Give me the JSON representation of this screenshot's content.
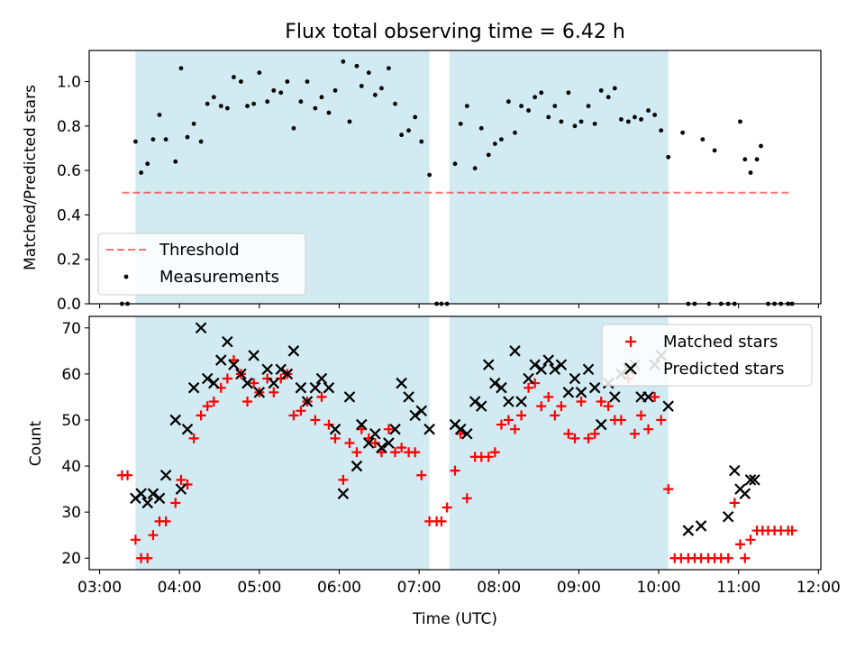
{
  "figure": {
    "title": "Flux total observing time = 6.42 h",
    "xlabel": "Time (UTC)"
  },
  "colors": {
    "band": "#add8e6",
    "threshold": "#ff0000",
    "measurements": "#000000",
    "matched": "#ff0000",
    "predicted": "#000000"
  },
  "chart_data": [
    {
      "type": "scatter",
      "ylabel": "Matched/Predicted stars",
      "ylim": [
        0,
        1.14
      ],
      "yticks": [
        "0.0",
        "0.2",
        "0.4",
        "0.6",
        "0.8",
        "1.0"
      ],
      "grid": false,
      "legend_position": "lower-left",
      "legend": [
        "Threshold",
        "Measurements"
      ],
      "threshold": {
        "name": "Threshold",
        "value": 0.5,
        "x_range": [
          3.28,
          11.67
        ]
      },
      "shaded_intervals": [
        [
          3.45,
          7.13
        ],
        [
          7.38,
          10.12
        ]
      ],
      "series": [
        {
          "name": "Measurements",
          "x": [
            3.28,
            3.35,
            3.45,
            3.52,
            3.6,
            3.67,
            3.75,
            3.83,
            3.95,
            4.02,
            4.1,
            4.18,
            4.27,
            4.35,
            4.43,
            4.52,
            4.6,
            4.68,
            4.77,
            4.85,
            4.93,
            5.0,
            5.1,
            5.18,
            5.27,
            5.35,
            5.43,
            5.52,
            5.6,
            5.7,
            5.78,
            5.87,
            5.95,
            6.05,
            6.13,
            6.22,
            6.28,
            6.37,
            6.45,
            6.53,
            6.62,
            6.7,
            6.78,
            6.87,
            6.95,
            7.03,
            7.13,
            7.22,
            7.28,
            7.35,
            7.45,
            7.52,
            7.6,
            7.7,
            7.78,
            7.87,
            7.95,
            8.03,
            8.12,
            8.2,
            8.28,
            8.37,
            8.45,
            8.53,
            8.62,
            8.7,
            8.78,
            8.87,
            8.95,
            9.03,
            9.12,
            9.2,
            9.28,
            9.37,
            9.45,
            9.53,
            9.62,
            9.7,
            9.78,
            9.87,
            9.95,
            10.03,
            10.12,
            10.3,
            10.37,
            10.45,
            10.55,
            10.63,
            10.7,
            10.78,
            10.87,
            10.95,
            11.02,
            11.08,
            11.15,
            11.23,
            11.28,
            11.37,
            11.45,
            11.53,
            11.62,
            11.67
          ],
          "y": [
            0.0,
            0.0,
            0.73,
            0.59,
            0.63,
            0.74,
            0.85,
            0.74,
            0.64,
            1.06,
            0.75,
            0.81,
            0.73,
            0.9,
            0.93,
            0.89,
            0.88,
            1.02,
            1.0,
            0.89,
            0.9,
            1.04,
            0.91,
            0.96,
            0.95,
            1.0,
            0.79,
            0.91,
            1.0,
            0.88,
            0.93,
            0.86,
            0.96,
            1.09,
            0.82,
            1.07,
            0.98,
            1.04,
            0.94,
            0.97,
            1.06,
            0.9,
            0.76,
            0.78,
            0.84,
            0.73,
            0.58,
            0.0,
            0.0,
            0.0,
            0.63,
            0.81,
            0.89,
            0.61,
            0.79,
            0.67,
            0.72,
            0.74,
            0.91,
            0.77,
            0.89,
            0.87,
            0.93,
            0.95,
            0.84,
            0.89,
            0.82,
            0.95,
            0.8,
            0.82,
            0.89,
            0.81,
            0.96,
            0.93,
            0.97,
            0.83,
            0.82,
            0.84,
            0.83,
            0.87,
            0.85,
            0.78,
            0.66,
            0.77,
            0.0,
            0.0,
            0.74,
            0.0,
            0.69,
            0.0,
            0.0,
            0.0,
            0.82,
            0.65,
            0.59,
            0.65,
            0.71,
            0.0,
            0.0,
            0.0,
            0.0,
            0.0
          ]
        }
      ]
    },
    {
      "type": "scatter",
      "ylabel": "Count",
      "ylim": [
        17.5,
        72.5
      ],
      "yticks": [
        "20",
        "30",
        "40",
        "50",
        "60",
        "70"
      ],
      "xlim": [
        2.87,
        12.03
      ],
      "xticks": [
        "03:00",
        "04:00",
        "05:00",
        "06:00",
        "07:00",
        "08:00",
        "09:00",
        "10:00",
        "11:00",
        "12:00"
      ],
      "grid": false,
      "legend_position": "upper-right",
      "legend": [
        "Matched stars",
        "Predicted stars"
      ],
      "shaded_intervals": [
        [
          3.45,
          7.13
        ],
        [
          7.38,
          10.12
        ]
      ],
      "series": [
        {
          "name": "Matched stars",
          "x": [
            3.28,
            3.35,
            3.45,
            3.52,
            3.6,
            3.67,
            3.75,
            3.83,
            3.95,
            4.02,
            4.1,
            4.18,
            4.27,
            4.35,
            4.43,
            4.52,
            4.6,
            4.68,
            4.77,
            4.85,
            4.93,
            5.0,
            5.1,
            5.18,
            5.27,
            5.35,
            5.43,
            5.52,
            5.6,
            5.7,
            5.78,
            5.87,
            5.95,
            6.05,
            6.13,
            6.22,
            6.28,
            6.37,
            6.45,
            6.53,
            6.62,
            6.7,
            6.78,
            6.87,
            6.95,
            7.03,
            7.13,
            7.22,
            7.28,
            7.35,
            7.45,
            7.52,
            7.6,
            7.7,
            7.78,
            7.87,
            7.95,
            8.03,
            8.12,
            8.2,
            8.28,
            8.37,
            8.45,
            8.53,
            8.62,
            8.7,
            8.78,
            8.87,
            8.95,
            9.03,
            9.12,
            9.2,
            9.28,
            9.37,
            9.45,
            9.53,
            9.62,
            9.7,
            9.78,
            9.87,
            9.95,
            10.03,
            10.12,
            10.2,
            10.28,
            10.37,
            10.45,
            10.53,
            10.62,
            10.7,
            10.78,
            10.87,
            10.95,
            11.02,
            11.08,
            11.15,
            11.23,
            11.3,
            11.37,
            11.45,
            11.53,
            11.62,
            11.67
          ],
          "y": [
            38,
            38,
            24,
            20,
            20,
            25,
            28,
            28,
            32,
            37,
            36,
            46,
            51,
            53,
            54,
            57,
            59,
            63,
            60,
            54,
            58,
            56,
            59,
            56,
            59,
            60,
            51,
            52,
            54,
            50,
            55,
            49,
            46,
            37,
            45,
            43,
            48,
            46,
            45,
            43,
            48,
            43,
            44,
            43,
            43,
            38,
            28,
            28,
            28,
            31,
            39,
            47,
            33,
            42,
            42,
            42,
            43,
            49,
            50,
            48,
            51,
            57,
            58,
            53,
            55,
            51,
            53,
            47,
            46,
            54,
            46,
            47,
            54,
            53,
            50,
            50,
            59,
            47,
            51,
            48,
            55,
            50,
            35,
            20,
            20,
            20,
            20,
            20,
            20,
            20,
            20,
            20,
            32,
            23,
            20,
            24,
            26,
            26,
            26,
            26,
            26,
            26,
            26
          ]
        },
        {
          "name": "Predicted stars",
          "x": [
            3.45,
            3.52,
            3.6,
            3.67,
            3.75,
            3.83,
            3.95,
            4.02,
            4.1,
            4.18,
            4.27,
            4.35,
            4.43,
            4.52,
            4.6,
            4.68,
            4.77,
            4.85,
            4.93,
            5.0,
            5.1,
            5.18,
            5.27,
            5.35,
            5.43,
            5.52,
            5.6,
            5.7,
            5.78,
            5.87,
            5.95,
            6.05,
            6.13,
            6.22,
            6.28,
            6.37,
            6.45,
            6.53,
            6.62,
            6.7,
            6.78,
            6.87,
            6.95,
            7.03,
            7.13,
            7.45,
            7.52,
            7.6,
            7.7,
            7.78,
            7.87,
            7.95,
            8.03,
            8.12,
            8.2,
            8.28,
            8.37,
            8.45,
            8.53,
            8.62,
            8.7,
            8.78,
            8.87,
            8.95,
            9.03,
            9.12,
            9.2,
            9.28,
            9.37,
            9.45,
            9.53,
            9.62,
            9.7,
            9.78,
            9.87,
            9.95,
            10.03,
            10.12,
            10.37,
            10.53,
            10.87,
            10.95,
            11.02,
            11.08,
            11.15,
            11.2
          ],
          "y": [
            33,
            34,
            32,
            34,
            33,
            38,
            50,
            35,
            48,
            57,
            70,
            59,
            58,
            63,
            67,
            62,
            60,
            58,
            64,
            56,
            61,
            58,
            61,
            60,
            65,
            57,
            54,
            57,
            59,
            57,
            48,
            34,
            55,
            40,
            49,
            45,
            47,
            44,
            45,
            48,
            58,
            55,
            51,
            52,
            48,
            49,
            48,
            47,
            54,
            53,
            62,
            58,
            57,
            54,
            65,
            54,
            59,
            62,
            61,
            63,
            61,
            62,
            56,
            59,
            56,
            61,
            57,
            49,
            58,
            55,
            60,
            61,
            62,
            55,
            55,
            62,
            64,
            53,
            26,
            27,
            29,
            39,
            35,
            34,
            37,
            37
          ]
        }
      ]
    }
  ]
}
